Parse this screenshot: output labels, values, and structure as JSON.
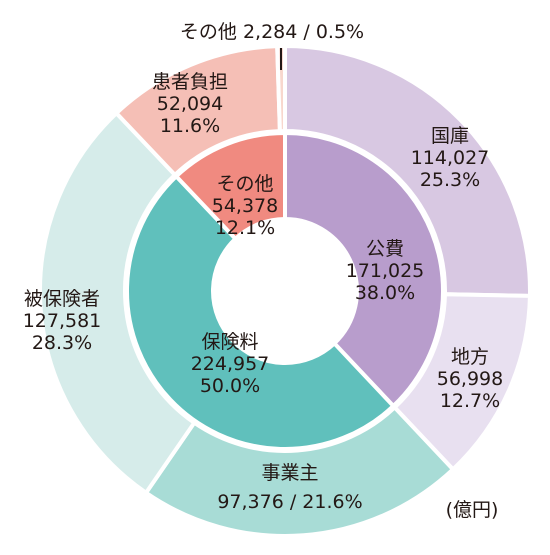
{
  "chart_data": {
    "type": "pie",
    "unit_label": "(億円)",
    "inner": [
      {
        "label": "公費",
        "value": 171025,
        "percent": "38.0%",
        "value_text": "171,025",
        "color": "#b89dcc"
      },
      {
        "label": "保険料",
        "value": 224957,
        "percent": "50.0%",
        "value_text": "224,957",
        "color": "#60c0bc"
      },
      {
        "label": "その他",
        "value": 54378,
        "percent": "12.1%",
        "value_text": "54,378",
        "color": "#f08a80"
      }
    ],
    "outer": [
      {
        "label": "国庫",
        "value": 114027,
        "percent": "25.3%",
        "value_text": "114,027",
        "color": "#d8c8e2"
      },
      {
        "label": "地方",
        "value": 56998,
        "percent": "12.7%",
        "value_text": "56,998",
        "color": "#e8e0f0"
      },
      {
        "label": "事業主",
        "value": 97376,
        "percent": "21.6%",
        "value_text": "97,376",
        "color": "#a8dcd6"
      },
      {
        "label": "被保険者",
        "value": 127581,
        "percent": "28.3%",
        "value_text": "127,581",
        "color": "#d6ecea"
      },
      {
        "label": "患者負担",
        "value": 52094,
        "percent": "11.6%",
        "value_text": "52,094",
        "color": "#f5bfb6"
      },
      {
        "label": "その他",
        "value": 2284,
        "percent": "0.5%",
        "value_text": "2,284",
        "color": "#f8d7cd"
      }
    ]
  }
}
